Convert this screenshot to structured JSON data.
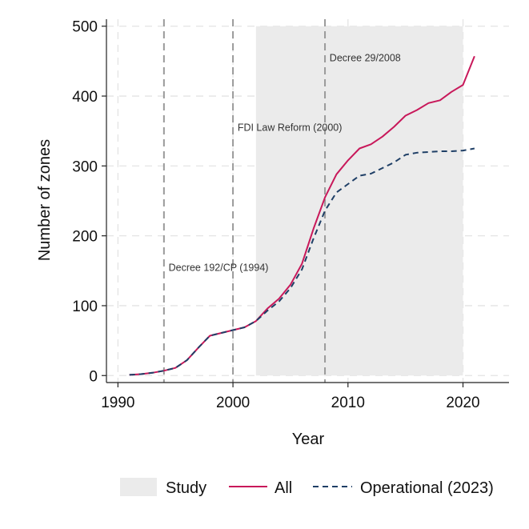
{
  "chart_data": {
    "type": "line",
    "title": "",
    "xlabel": "Year",
    "ylabel": "Number of zones",
    "xlim": [
      1989,
      2024
    ],
    "ylim": [
      -10,
      510
    ],
    "xticks": [
      1990,
      2000,
      2010,
      2020
    ],
    "yticks": [
      0,
      100,
      200,
      300,
      400,
      500
    ],
    "grid": true,
    "legend_position": "bottom",
    "study_period": {
      "label": "Study",
      "start": 2002,
      "end": 2020,
      "color": "#ebebeb"
    },
    "annotations": [
      {
        "text": "Decree 192/CP (1994)",
        "x": 1994,
        "label_x": 1994.4,
        "label_y": 150
      },
      {
        "text": "FDI Law Reform (2000)",
        "x": 2000,
        "label_x": 2000.4,
        "label_y": 350
      },
      {
        "text": "Decree 29/2008",
        "x": 2008,
        "label_x": 2008.4,
        "label_y": 450
      }
    ],
    "series": [
      {
        "name": "All",
        "color": "#c8185a",
        "dash": "solid",
        "x": [
          1991,
          1992,
          1993,
          1994,
          1995,
          1996,
          1997,
          1998,
          1999,
          2000,
          2001,
          2002,
          2003,
          2004,
          2005,
          2006,
          2007,
          2008,
          2009,
          2010,
          2011,
          2012,
          2013,
          2014,
          2015,
          2016,
          2017,
          2018,
          2019,
          2020,
          2021
        ],
        "y": [
          1,
          2,
          4,
          7,
          11,
          22,
          40,
          57,
          61,
          65,
          69,
          78,
          96,
          110,
          130,
          160,
          210,
          255,
          288,
          308,
          325,
          331,
          342,
          356,
          372,
          380,
          390,
          394,
          406,
          416,
          457
        ]
      },
      {
        "name": "Operational (2023)",
        "color": "#1f3f66",
        "dash": "dashed",
        "x": [
          1991,
          1992,
          1993,
          1994,
          1995,
          1996,
          1997,
          1998,
          1999,
          2000,
          2001,
          2002,
          2003,
          2004,
          2005,
          2006,
          2007,
          2008,
          2009,
          2010,
          2011,
          2012,
          2013,
          2014,
          2015,
          2016,
          2017,
          2018,
          2019,
          2020,
          2021
        ],
        "y": [
          1,
          2,
          4,
          7,
          11,
          22,
          40,
          57,
          61,
          65,
          69,
          78,
          93,
          106,
          125,
          152,
          196,
          236,
          262,
          274,
          286,
          289,
          297,
          305,
          316,
          319,
          320,
          321,
          321,
          322,
          325
        ]
      }
    ]
  }
}
